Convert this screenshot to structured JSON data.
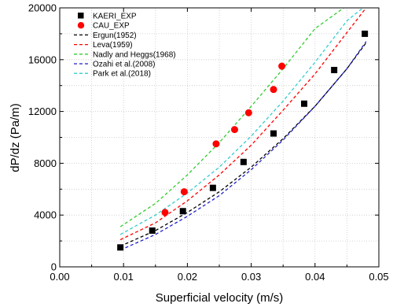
{
  "chart_data": {
    "type": "scatter",
    "xlabel": "Superficial velocity (m/s)",
    "ylabel": "dP/dz (Pa/m)",
    "xlim": [
      0.0,
      0.05
    ],
    "ylim": [
      0,
      20000
    ],
    "x_ticks": [
      0.0,
      0.01,
      0.02,
      0.03,
      0.04,
      0.05
    ],
    "x_tick_labels": [
      "0.00",
      "0.01",
      "0.02",
      "0.03",
      "0.04",
      "0.05"
    ],
    "y_ticks": [
      0,
      4000,
      8000,
      12000,
      16000,
      20000
    ],
    "y_tick_labels": [
      "0",
      "4000",
      "8000",
      "12000",
      "16000",
      "20000"
    ],
    "grid": true,
    "legend_position": "top-left",
    "series": [
      {
        "name": "KAERI_EXP",
        "kind": "marker",
        "marker": "square",
        "color": "#000000",
        "x": [
          0.0095,
          0.0145,
          0.0193,
          0.024,
          0.0288,
          0.0335,
          0.0383,
          0.043,
          0.0478
        ],
        "y": [
          1500,
          2800,
          4300,
          6100,
          8100,
          10300,
          12600,
          15200,
          18000
        ]
      },
      {
        "name": "CAU_EXP",
        "kind": "marker",
        "marker": "circle",
        "color": "#ff0000",
        "x": [
          0.0165,
          0.0195,
          0.0245,
          0.0274,
          0.0296,
          0.0335,
          0.0348
        ],
        "y": [
          4200,
          5800,
          9500,
          10600,
          11900,
          13700,
          15500
        ]
      },
      {
        "name": "Ergun(1952)",
        "kind": "line",
        "color": "#000000",
        "x": [
          0.0095,
          0.015,
          0.02,
          0.025,
          0.03,
          0.035,
          0.04,
          0.045,
          0.048
        ],
        "y": [
          1600,
          2800,
          4200,
          5800,
          7700,
          9900,
          12400,
          15300,
          17300
        ]
      },
      {
        "name": "Leva(1959)",
        "kind": "line",
        "color": "#ff0000",
        "x": [
          0.0095,
          0.015,
          0.02,
          0.025,
          0.03,
          0.035,
          0.04,
          0.045,
          0.048
        ],
        "y": [
          2100,
          3400,
          5100,
          7100,
          9400,
          12100,
          14900,
          18100,
          20000
        ]
      },
      {
        "name": "Nadly and Heggs(1968)",
        "kind": "line",
        "color": "#33cc33",
        "x": [
          0.0095,
          0.015,
          0.02,
          0.025,
          0.03,
          0.035,
          0.04,
          0.0445
        ],
        "y": [
          3100,
          4900,
          7100,
          9600,
          12400,
          15300,
          18400,
          20000
        ]
      },
      {
        "name": "Ozahi et al.(2008)",
        "kind": "line",
        "color": "#1f1fcc",
        "x": [
          0.0095,
          0.015,
          0.02,
          0.025,
          0.03,
          0.035,
          0.04,
          0.045,
          0.048
        ],
        "y": [
          1300,
          2500,
          3900,
          5500,
          7500,
          9800,
          12400,
          15300,
          17400
        ]
      },
      {
        "name": "Park et al.(2018)",
        "kind": "line",
        "color": "#33cccc",
        "x": [
          0.0095,
          0.015,
          0.02,
          0.025,
          0.03,
          0.035,
          0.04,
          0.045,
          0.0475
        ],
        "y": [
          2500,
          4000,
          5700,
          7700,
          10100,
          12800,
          15800,
          19000,
          20000
        ]
      }
    ]
  }
}
